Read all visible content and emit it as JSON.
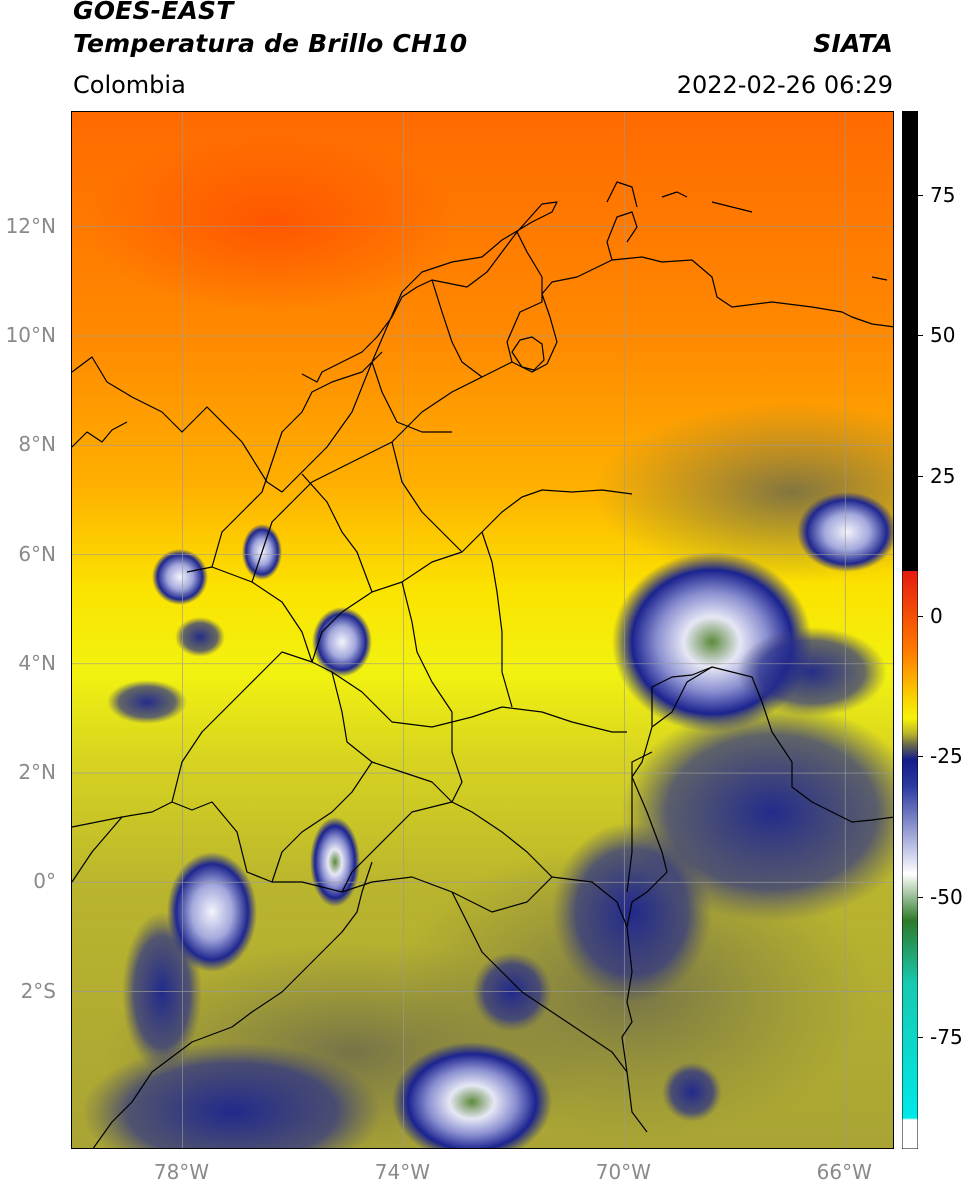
{
  "header": {
    "satellite": "GOES-EAST",
    "product": "Temperatura de Brillo CH10",
    "region": "Colombia",
    "brand": "SIATA",
    "timestamp": "2022-02-26 06:29"
  },
  "map": {
    "lat_ticks": [
      "12°N",
      "10°N",
      "8°N",
      "6°N",
      "4°N",
      "2°N",
      "0°",
      "2°S"
    ],
    "lon_ticks": [
      "78°W",
      "74°W",
      "70°W",
      "66°W"
    ],
    "lat_values": [
      12,
      10,
      8,
      6,
      4,
      2,
      0,
      -2
    ],
    "lon_values": [
      -78,
      -74,
      -70,
      -66
    ],
    "extent": {
      "lon_min": -80,
      "lon_max": -65.1,
      "lat_min": -4.9,
      "lat_max": 14.1
    }
  },
  "colorbar": {
    "ticks": [
      "75",
      "50",
      "25",
      "0",
      "-25",
      "-50",
      "-75"
    ],
    "tick_values": [
      75,
      50,
      25,
      0,
      -25,
      -50,
      -75
    ],
    "range": [
      -95,
      90
    ],
    "colors": {
      "warm_black": "#000000",
      "red": "#e41a10",
      "orange": "#ff7a00",
      "yellow": "#f6f20a",
      "olive": "#b9b32a",
      "grey_olive": "#6c6c4a",
      "navy": "#141c8c",
      "blue_white": "#d8daf0",
      "white": "#ffffff",
      "green": "#2e7a2a",
      "teal": "#19c9b0",
      "cyan": "#00e8e8"
    }
  }
}
